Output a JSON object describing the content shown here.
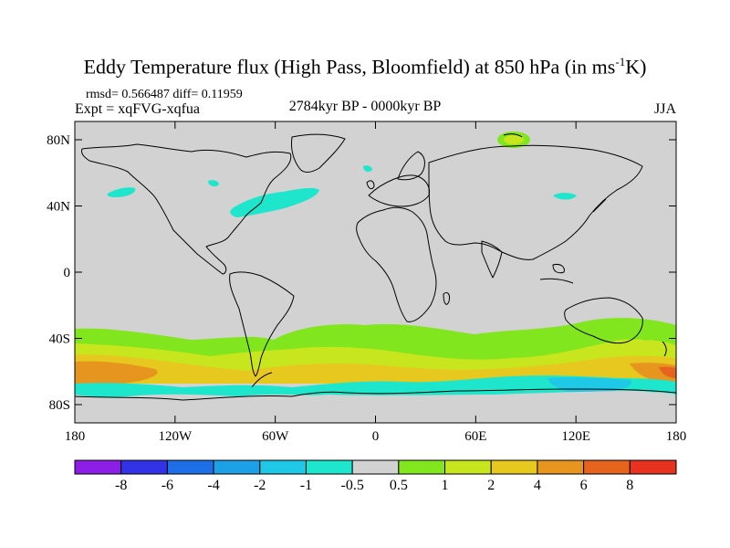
{
  "title": "Eddy Temperature flux (High Pass, Bloomfield) at 850 hPa (in ms",
  "title_sup": "-1",
  "title_end": "K)",
  "stats": "rmsd= 0.566487 diff= 0.11959",
  "experiment": "Expt = xqFVG-xqfua",
  "period": "2784kyr BP - 0000kyr BP",
  "season": "JJA",
  "y_axis_labels": [
    "80N",
    "40N",
    "0",
    "40S",
    "80S"
  ],
  "x_axis_labels": [
    "180",
    "120W",
    "60W",
    "0",
    "60E",
    "120E",
    "180"
  ],
  "colorbar": {
    "labels": [
      "-8",
      "-6",
      "-4",
      "-2",
      "-1",
      "-0.5",
      "0.5",
      "1",
      "2",
      "4",
      "6",
      "8"
    ],
    "colors": [
      "#8c1ee6",
      "#3232e6",
      "#1e6ee6",
      "#1ea0e6",
      "#1ec8e6",
      "#1ee6cc",
      "#d2d2d2",
      "#82e61e",
      "#c8e61e",
      "#e6c81e",
      "#e6961e",
      "#e6641e",
      "#e6321e"
    ]
  },
  "map_colors": {
    "background": "#d2d2d2",
    "coast": "#000000"
  }
}
